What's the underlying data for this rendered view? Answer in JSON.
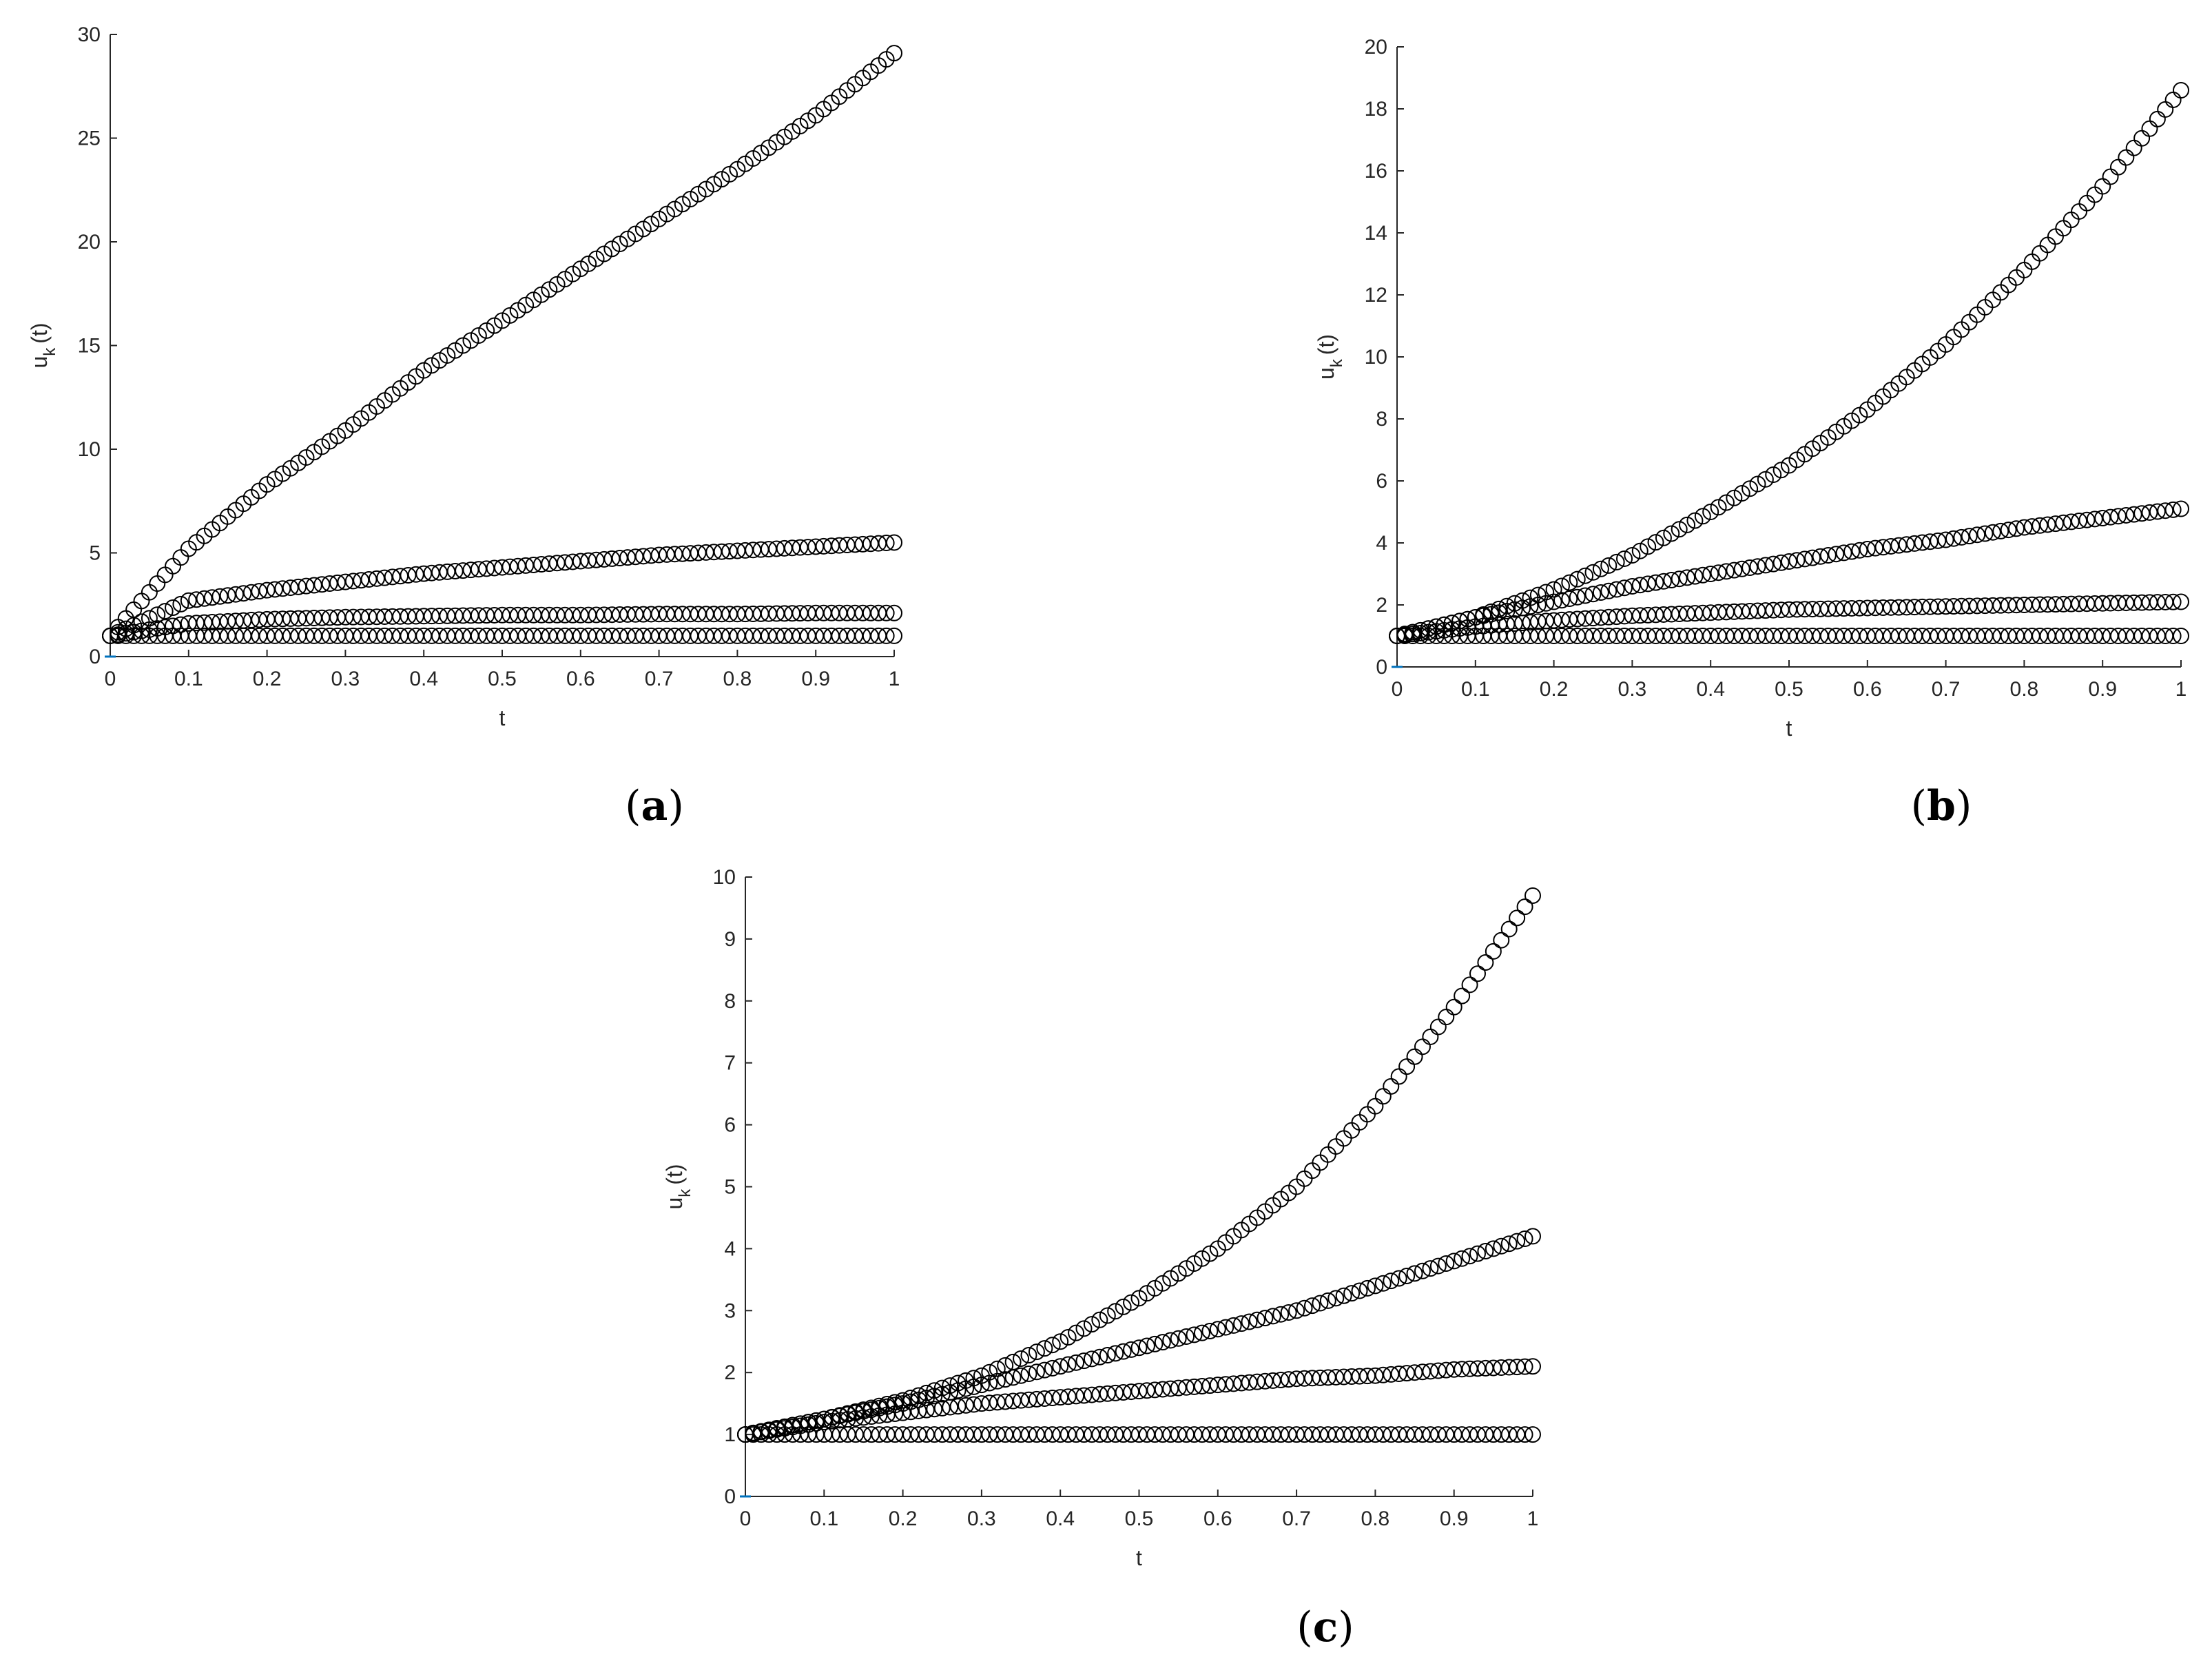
{
  "figure": {
    "background": "#ffffff",
    "marker_color": "#000000",
    "axis_color": "#262626",
    "origin_tick_color": "#0072bd"
  },
  "chart_data": [
    {
      "id": "a",
      "type": "scatter",
      "panel_label": "a",
      "xlabel": "t",
      "ylabel": "u",
      "ylabel_sub": "k",
      "ylabel_arg": "(t)",
      "xlim": [
        0,
        1
      ],
      "ylim": [
        0,
        30
      ],
      "xticks": [
        0,
        0.1,
        0.2,
        0.3,
        0.4,
        0.5,
        0.6,
        0.7,
        0.8,
        0.9,
        1
      ],
      "xtick_labels": [
        "0",
        "0.1",
        "0.2",
        "0.3",
        "0.4",
        "0.5",
        "0.6",
        "0.7",
        "0.8",
        "0.9",
        "1"
      ],
      "yticks": [
        0,
        5,
        10,
        15,
        20,
        25,
        30
      ],
      "ytick_labels": [
        "0",
        "5",
        "10",
        "15",
        "20",
        "25",
        "30"
      ],
      "grid": false,
      "marker": "open-circle",
      "x": [
        0,
        0.1,
        0.2,
        0.3,
        0.4,
        0.5,
        0.6,
        0.7,
        0.8,
        0.9,
        1
      ],
      "series": [
        {
          "values": [
            1.0,
            5.2,
            8.3,
            10.9,
            13.8,
            16.2,
            18.7,
            21.1,
            23.5,
            26.1,
            29.1
          ]
        },
        {
          "values": [
            1.0,
            2.7,
            3.2,
            3.6,
            4.0,
            4.3,
            4.6,
            4.9,
            5.1,
            5.3,
            5.5
          ]
        },
        {
          "values": [
            1.0,
            1.6,
            1.8,
            1.9,
            1.95,
            2.0,
            2.0,
            2.05,
            2.05,
            2.1,
            2.1
          ]
        },
        {
          "values": [
            1.0,
            1.0,
            1.0,
            1.0,
            1.0,
            1.0,
            1.0,
            1.0,
            1.0,
            1.0,
            1.0
          ]
        }
      ]
    },
    {
      "id": "b",
      "type": "scatter",
      "panel_label": "b",
      "xlabel": "t",
      "ylabel": "u",
      "ylabel_sub": "k",
      "ylabel_arg": "(t)",
      "xlim": [
        0,
        1
      ],
      "ylim": [
        0,
        20
      ],
      "xticks": [
        0,
        0.1,
        0.2,
        0.3,
        0.4,
        0.5,
        0.6,
        0.7,
        0.8,
        0.9,
        1
      ],
      "xtick_labels": [
        "0",
        "0.1",
        "0.2",
        "0.3",
        "0.4",
        "0.5",
        "0.6",
        "0.7",
        "0.8",
        "0.9",
        "1"
      ],
      "yticks": [
        0,
        2,
        4,
        6,
        8,
        10,
        12,
        14,
        16,
        18,
        20
      ],
      "ytick_labels": [
        "0",
        "2",
        "4",
        "6",
        "8",
        "10",
        "12",
        "14",
        "16",
        "18",
        "20"
      ],
      "grid": false,
      "marker": "open-circle",
      "x": [
        0,
        0.1,
        0.2,
        0.3,
        0.4,
        0.5,
        0.6,
        0.7,
        0.8,
        0.9,
        1
      ],
      "series": [
        {
          "values": [
            1.0,
            1.6,
            2.5,
            3.6,
            5.0,
            6.5,
            8.3,
            10.4,
            12.8,
            15.5,
            18.6
          ]
        },
        {
          "values": [
            1.0,
            1.6,
            2.1,
            2.6,
            3.0,
            3.4,
            3.8,
            4.1,
            4.5,
            4.8,
            5.1
          ]
        },
        {
          "values": [
            1.0,
            1.3,
            1.5,
            1.65,
            1.75,
            1.85,
            1.9,
            1.95,
            2.0,
            2.05,
            2.1
          ]
        },
        {
          "values": [
            1.0,
            1.0,
            1.0,
            1.0,
            1.0,
            1.0,
            1.0,
            1.0,
            1.0,
            1.0,
            1.0
          ]
        }
      ]
    },
    {
      "id": "c",
      "type": "scatter",
      "panel_label": "c",
      "xlabel": "t",
      "ylabel": "u",
      "ylabel_sub": "k",
      "ylabel_arg": "(t)",
      "xlim": [
        0,
        1
      ],
      "ylim": [
        0,
        10
      ],
      "xticks": [
        0,
        0.1,
        0.2,
        0.3,
        0.4,
        0.5,
        0.6,
        0.7,
        0.8,
        0.9,
        1
      ],
      "xtick_labels": [
        "0",
        "0.1",
        "0.2",
        "0.3",
        "0.4",
        "0.5",
        "0.6",
        "0.7",
        "0.8",
        "0.9",
        "1"
      ],
      "yticks": [
        0,
        1,
        2,
        3,
        4,
        5,
        6,
        7,
        8,
        9,
        10
      ],
      "ytick_labels": [
        "0",
        "1",
        "2",
        "3",
        "4",
        "5",
        "6",
        "7",
        "8",
        "9",
        "10"
      ],
      "grid": false,
      "marker": "open-circle",
      "x": [
        0,
        0.1,
        0.2,
        0.3,
        0.4,
        0.5,
        0.6,
        0.7,
        0.8,
        0.9,
        1
      ],
      "series": [
        {
          "values": [
            1.0,
            1.25,
            1.55,
            1.95,
            2.5,
            3.2,
            4.0,
            5.0,
            6.3,
            7.9,
            9.7
          ]
        },
        {
          "values": [
            1.0,
            1.25,
            1.5,
            1.8,
            2.1,
            2.4,
            2.7,
            3.0,
            3.4,
            3.8,
            4.2
          ]
        },
        {
          "values": [
            1.0,
            1.2,
            1.35,
            1.5,
            1.6,
            1.7,
            1.8,
            1.9,
            1.95,
            2.05,
            2.1
          ]
        },
        {
          "values": [
            1.0,
            1.0,
            1.0,
            1.0,
            1.0,
            1.0,
            1.0,
            1.0,
            1.0,
            1.0,
            1.0
          ]
        }
      ]
    }
  ]
}
